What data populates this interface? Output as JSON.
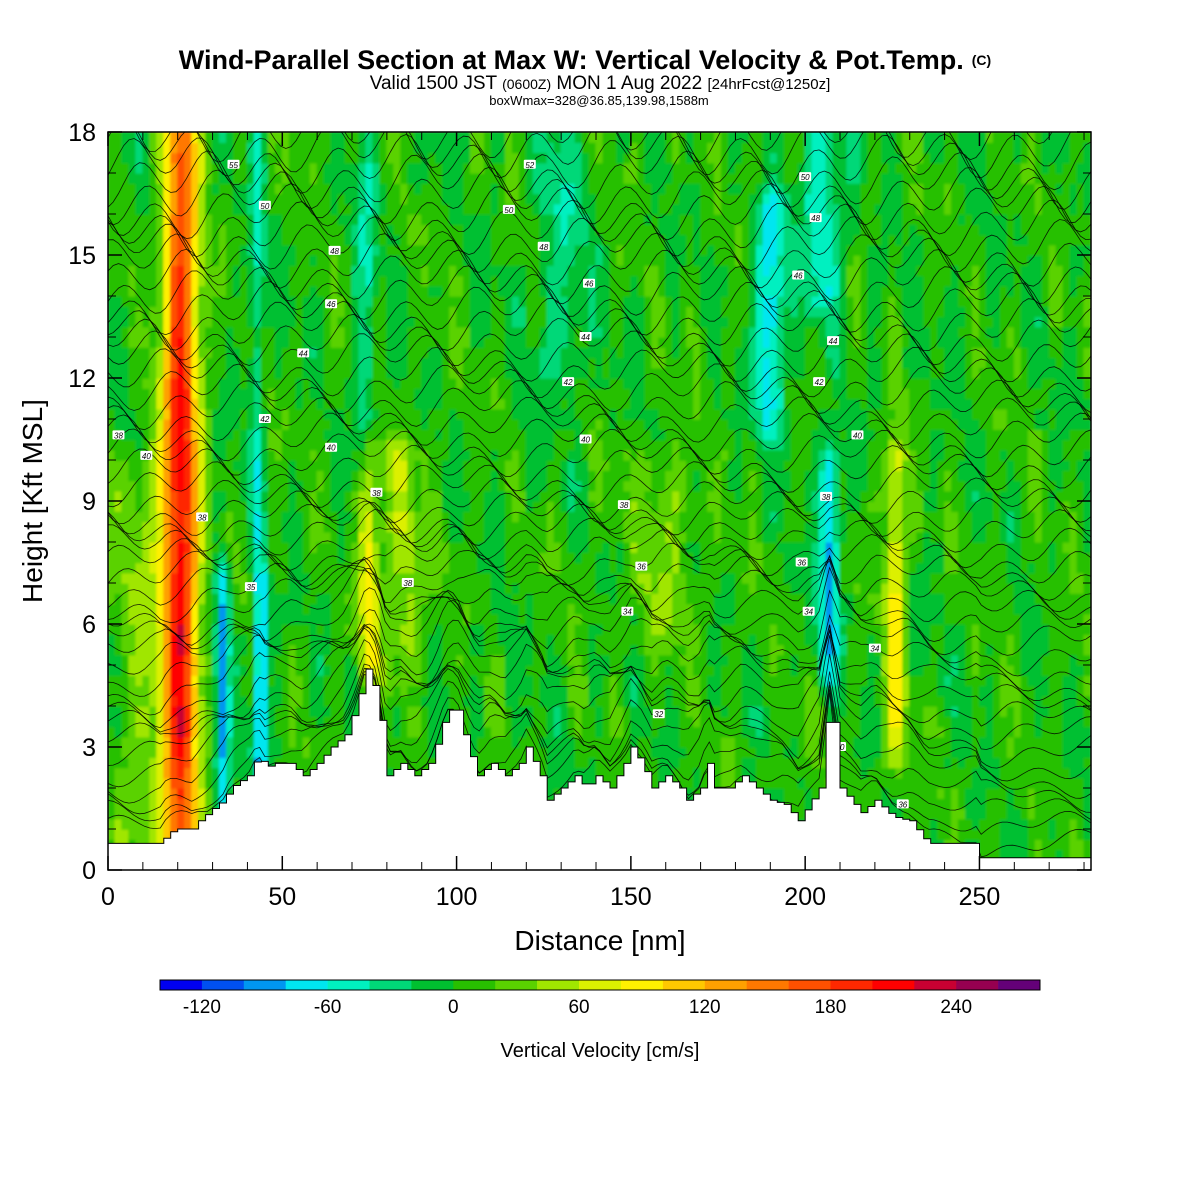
{
  "chart_data": {
    "type": "heatmap",
    "title": "Wind-Parallel Section at Max W: Vertical Velocity & Pot.Temp.",
    "title_mark": "(C)",
    "subtitle_parts": [
      "Valid 1500 JST",
      "(0600Z)",
      "MON 1 Aug 2022",
      "[24hrFcst@1250z]"
    ],
    "subtitle2": "boxWmax=328@36.85,139.98,1588m",
    "xlabel": "Distance [nm]",
    "ylabel": "Height [Kft MSL]",
    "xlim": [
      0,
      282
    ],
    "ylim": [
      0,
      18
    ],
    "x_ticks": [
      0,
      50,
      100,
      150,
      200,
      250
    ],
    "y_ticks": [
      0,
      3,
      6,
      9,
      12,
      15,
      18
    ],
    "colorbar": {
      "label": "Vertical Velocity [cm/s]",
      "min": -140,
      "max": 280,
      "tick_values": [
        -120,
        -60,
        0,
        60,
        120,
        180,
        240
      ],
      "tick_labels": [
        "-120",
        "-60",
        "0",
        "60",
        "120",
        "180",
        "240"
      ],
      "colors": [
        "#0000f0",
        "#0050f0",
        "#0096f0",
        "#00e6f0",
        "#00f0c0",
        "#00d878",
        "#00c030",
        "#28c000",
        "#5ad200",
        "#a0e600",
        "#dcf000",
        "#fff000",
        "#ffc800",
        "#ffa000",
        "#ff7800",
        "#ff5000",
        "#ff2800",
        "#ff0000",
        "#c80032",
        "#960050",
        "#640078"
      ]
    },
    "fields": {
      "background_w_cm_s": 5,
      "updraft_and_downdraft_bands": [
        {
          "x_center": 21,
          "width": 5,
          "z_bottom": 0.5,
          "z_top": 18,
          "peak_w": 200
        },
        {
          "x_center": 12,
          "width": 10,
          "z_bottom": 0.5,
          "z_top": 10,
          "peak_w": 35
        },
        {
          "x_center": 33,
          "width": 2,
          "z_bottom": 1.5,
          "z_top": 7,
          "peak_w": -100
        },
        {
          "x_center": 44,
          "width": 2,
          "z_bottom": 2.5,
          "z_top": 7,
          "peak_w": -110
        },
        {
          "x_center": 43,
          "width": 2,
          "z_bottom": 8,
          "z_top": 18,
          "peak_w": -50
        },
        {
          "x_center": 75,
          "width": 3,
          "z_bottom": 5,
          "z_top": 10,
          "peak_w": 80
        },
        {
          "x_center": 74,
          "width": 3,
          "z_bottom": 10,
          "z_top": 18,
          "peak_w": -45
        },
        {
          "x_center": 85,
          "width": 6,
          "z_bottom": 5,
          "z_top": 10,
          "peak_w": 45
        },
        {
          "x_center": 130,
          "width": 8,
          "z_bottom": 12,
          "z_top": 18,
          "peak_w": -35
        },
        {
          "x_center": 190,
          "width": 4,
          "z_bottom": 11,
          "z_top": 16,
          "peak_w": -90
        },
        {
          "x_center": 207,
          "width": 3,
          "z_bottom": 5,
          "z_top": 10,
          "peak_w": -90
        },
        {
          "x_center": 205,
          "width": 6,
          "z_bottom": 14,
          "z_top": 18,
          "peak_w": -60
        },
        {
          "x_center": 226,
          "width": 3,
          "z_bottom": 3,
          "z_top": 10,
          "peak_w": 80
        },
        {
          "x_center": 160,
          "width": 10,
          "z_bottom": 6,
          "z_top": 10,
          "peak_w": 30
        }
      ],
      "potential_temperature_C": {
        "levels": [
          30,
          32,
          34,
          36,
          38,
          40,
          42,
          44,
          46,
          48,
          50,
          52,
          54,
          56,
          58,
          60,
          62
        ],
        "labels": [
          {
            "text": "30",
            "x": 210,
            "z": 3.0
          },
          {
            "text": "32",
            "x": 158,
            "z": 3.8
          },
          {
            "text": "34",
            "x": 149,
            "z": 6.3
          },
          {
            "text": "34",
            "x": 201,
            "z": 6.3
          },
          {
            "text": "34",
            "x": 220,
            "z": 5.4
          },
          {
            "text": "35",
            "x": 41,
            "z": 6.9
          },
          {
            "text": "36",
            "x": 153,
            "z": 7.4
          },
          {
            "text": "36",
            "x": 199,
            "z": 7.5
          },
          {
            "text": "36",
            "x": 228,
            "z": 1.6
          },
          {
            "text": "38",
            "x": 27,
            "z": 8.6
          },
          {
            "text": "38",
            "x": 86,
            "z": 7.0
          },
          {
            "text": "38",
            "x": 148,
            "z": 8.9
          },
          {
            "text": "38",
            "x": 77,
            "z": 9.2
          },
          {
            "text": "38",
            "x": 206,
            "z": 9.1
          },
          {
            "text": "40",
            "x": 11,
            "z": 10.1
          },
          {
            "text": "40",
            "x": 64,
            "z": 10.3
          },
          {
            "text": "40",
            "x": 137,
            "z": 10.5
          },
          {
            "text": "40",
            "x": 215,
            "z": 10.6
          },
          {
            "text": "42",
            "x": 45,
            "z": 11.0
          },
          {
            "text": "42",
            "x": 132,
            "z": 11.9
          },
          {
            "text": "42",
            "x": 204,
            "z": 11.9
          },
          {
            "text": "44",
            "x": 56,
            "z": 12.6
          },
          {
            "text": "44",
            "x": 137,
            "z": 13.0
          },
          {
            "text": "44",
            "x": 208,
            "z": 12.9
          },
          {
            "text": "46",
            "x": 64,
            "z": 13.8
          },
          {
            "text": "46",
            "x": 138,
            "z": 14.3
          },
          {
            "text": "46",
            "x": 198,
            "z": 14.5
          },
          {
            "text": "48",
            "x": 65,
            "z": 15.1
          },
          {
            "text": "48",
            "x": 125,
            "z": 15.2
          },
          {
            "text": "48",
            "x": 203,
            "z": 15.9
          },
          {
            "text": "50",
            "x": 45,
            "z": 16.2
          },
          {
            "text": "50",
            "x": 115,
            "z": 16.1
          },
          {
            "text": "50",
            "x": 200,
            "z": 16.9
          },
          {
            "text": "52",
            "x": 121,
            "z": 17.2
          },
          {
            "text": "55",
            "x": 36,
            "z": 17.2
          },
          {
            "text": "38",
            "x": 3,
            "z": 10.6
          }
        ]
      }
    },
    "terrain_kft": [
      [
        0,
        0.65
      ],
      [
        10,
        0.65
      ],
      [
        15,
        0.65
      ],
      [
        17,
        0.9
      ],
      [
        20,
        1.0
      ],
      [
        24,
        1.0
      ],
      [
        26,
        1.2
      ],
      [
        30,
        1.5
      ],
      [
        33,
        1.7
      ],
      [
        35,
        2.0
      ],
      [
        40,
        2.3
      ],
      [
        43,
        2.8
      ],
      [
        45,
        2.5
      ],
      [
        48,
        2.6
      ],
      [
        52,
        2.6
      ],
      [
        56,
        2.3
      ],
      [
        60,
        2.6
      ],
      [
        64,
        3.0
      ],
      [
        68,
        3.3
      ],
      [
        71,
        4.0
      ],
      [
        74,
        4.9
      ],
      [
        77,
        4.3
      ],
      [
        79,
        3.0
      ],
      [
        80,
        2.3
      ],
      [
        84,
        2.6
      ],
      [
        88,
        2.3
      ],
      [
        92,
        2.6
      ],
      [
        95,
        3.3
      ],
      [
        97,
        3.9
      ],
      [
        100,
        3.9
      ],
      [
        103,
        3.0
      ],
      [
        106,
        2.3
      ],
      [
        110,
        2.6
      ],
      [
        114,
        2.3
      ],
      [
        118,
        2.6
      ],
      [
        120,
        3.0
      ],
      [
        124,
        2.3
      ],
      [
        126,
        1.7
      ],
      [
        130,
        2.0
      ],
      [
        134,
        2.3
      ],
      [
        137,
        2.0
      ],
      [
        140,
        2.3
      ],
      [
        144,
        2.0
      ],
      [
        148,
        2.6
      ],
      [
        150,
        3.0
      ],
      [
        153,
        2.6
      ],
      [
        156,
        2.0
      ],
      [
        160,
        2.3
      ],
      [
        164,
        2.0
      ],
      [
        166,
        1.7
      ],
      [
        170,
        2.0
      ],
      [
        172,
        2.6
      ],
      [
        174,
        2.0
      ],
      [
        178,
        2.0
      ],
      [
        182,
        2.3
      ],
      [
        186,
        2.0
      ],
      [
        190,
        1.7
      ],
      [
        194,
        1.6
      ],
      [
        198,
        1.2
      ],
      [
        201,
        1.6
      ],
      [
        204,
        2.0
      ],
      [
        206,
        3.6
      ],
      [
        207,
        4.3
      ],
      [
        208,
        3.6
      ],
      [
        210,
        2.0
      ],
      [
        213,
        1.7
      ],
      [
        216,
        1.4
      ],
      [
        220,
        1.7
      ],
      [
        225,
        1.3
      ],
      [
        230,
        1.2
      ],
      [
        235,
        0.65
      ],
      [
        249,
        0.65
      ],
      [
        249,
        0.3
      ],
      [
        282,
        0.3
      ]
    ]
  }
}
